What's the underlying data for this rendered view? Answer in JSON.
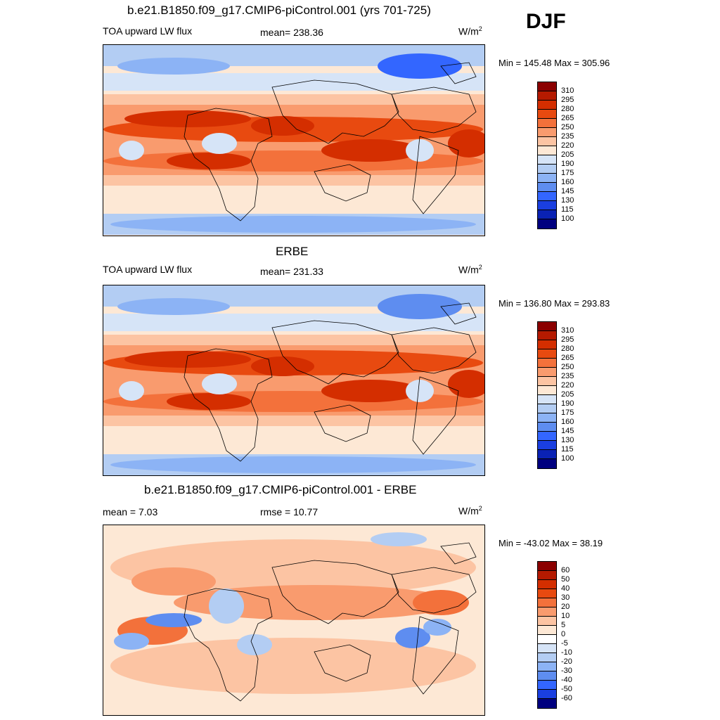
{
  "season": "DJF",
  "panels": [
    {
      "title": "b.e21.B1850.f09_g17.CMIP6-piControl.001 (yrs 701-725)",
      "left": "TOA upward LW flux",
      "center": "mean= 238.36",
      "units": "W/m",
      "units_sup": "2",
      "minmax": "Min = 145.48 Max = 305.96",
      "palette": "flux",
      "variant": "model"
    },
    {
      "title": "ERBE",
      "left": "TOA upward LW flux",
      "center": "mean= 231.33",
      "units": "W/m",
      "units_sup": "2",
      "minmax": "Min = 136.80 Max = 293.83",
      "palette": "flux",
      "variant": "obs"
    },
    {
      "title": "b.e21.B1850.f09_g17.CMIP6-piControl.001 - ERBE",
      "left": "mean =   7.03",
      "center": "rmse =  10.77",
      "units": "W/m",
      "units_sup": "2",
      "minmax": "Min = -43.02 Max =  38.19",
      "palette": "diff",
      "variant": "diff"
    }
  ],
  "colorbars": {
    "flux": {
      "labels": [
        "310",
        "295",
        "280",
        "265",
        "250",
        "235",
        "220",
        "205",
        "190",
        "175",
        "160",
        "145",
        "130",
        "115",
        "100"
      ],
      "colors": [
        "#8b0000",
        "#b51a00",
        "#d42e00",
        "#e84a10",
        "#f3713b",
        "#f99b6e",
        "#fcc4a3",
        "#fde8d5",
        "#d6e4f7",
        "#b3cdf3",
        "#8cb3f5",
        "#5e8df0",
        "#3366ff",
        "#1a3fe0",
        "#0a22b4",
        "#00007f"
      ]
    },
    "diff": {
      "labels": [
        "60",
        "50",
        "40",
        "30",
        "20",
        "10",
        "5",
        "0",
        "-5",
        "-10",
        "-20",
        "-30",
        "-40",
        "-50",
        "-60"
      ],
      "colors": [
        "#8b0000",
        "#b51a00",
        "#d42e00",
        "#e84a10",
        "#f3713b",
        "#f99b6e",
        "#fcc4a3",
        "#fde8d5",
        "#ffffff",
        "#d6e4f7",
        "#b3cdf3",
        "#8cb3f5",
        "#5e8df0",
        "#3366ff",
        "#1a3fe0",
        "#00007f"
      ]
    }
  }
}
